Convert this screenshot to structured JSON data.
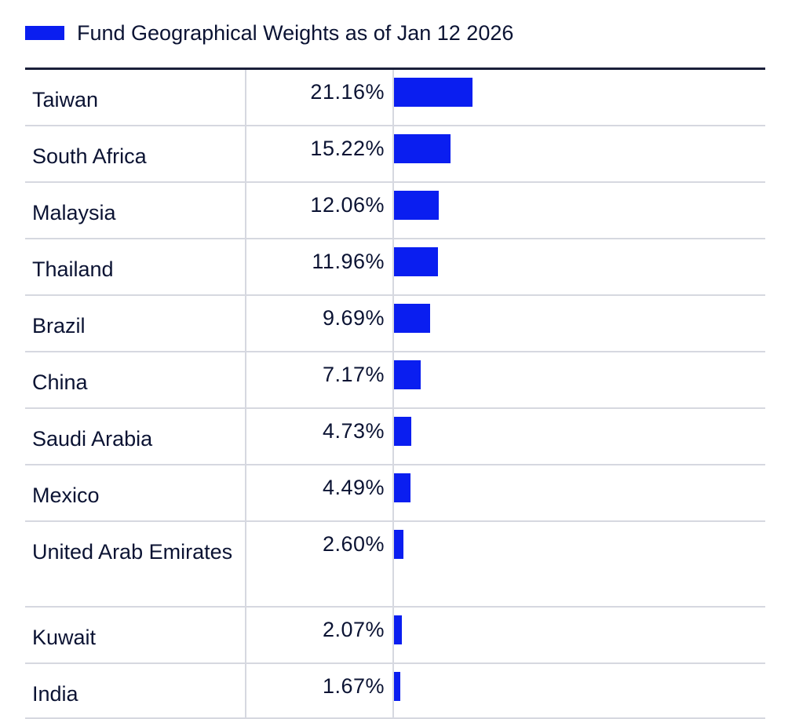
{
  "legend": {
    "label": "Fund Geographical Weights as of Jan 12 2026",
    "color": "#0a1ef0"
  },
  "chart_data": {
    "type": "bar",
    "orientation": "horizontal",
    "title": "Fund Geographical Weights as of Jan 12 2026",
    "categories": [
      "Taiwan",
      "South Africa",
      "Malaysia",
      "Thailand",
      "Brazil",
      "China",
      "Saudi Arabia",
      "Mexico",
      "United Arab Emirates",
      "Kuwait",
      "India"
    ],
    "values": [
      21.16,
      15.22,
      12.06,
      11.96,
      9.69,
      7.17,
      4.73,
      4.49,
      2.6,
      2.07,
      1.67
    ],
    "labels": [
      "21.16%",
      "15.22%",
      "12.06%",
      "11.96%",
      "9.69%",
      "7.17%",
      "4.73%",
      "4.49%",
      "2.60%",
      "2.07%",
      "1.67%"
    ],
    "unit": "%",
    "bar_color": "#0a1ef0",
    "xlim": [
      0,
      100
    ]
  }
}
